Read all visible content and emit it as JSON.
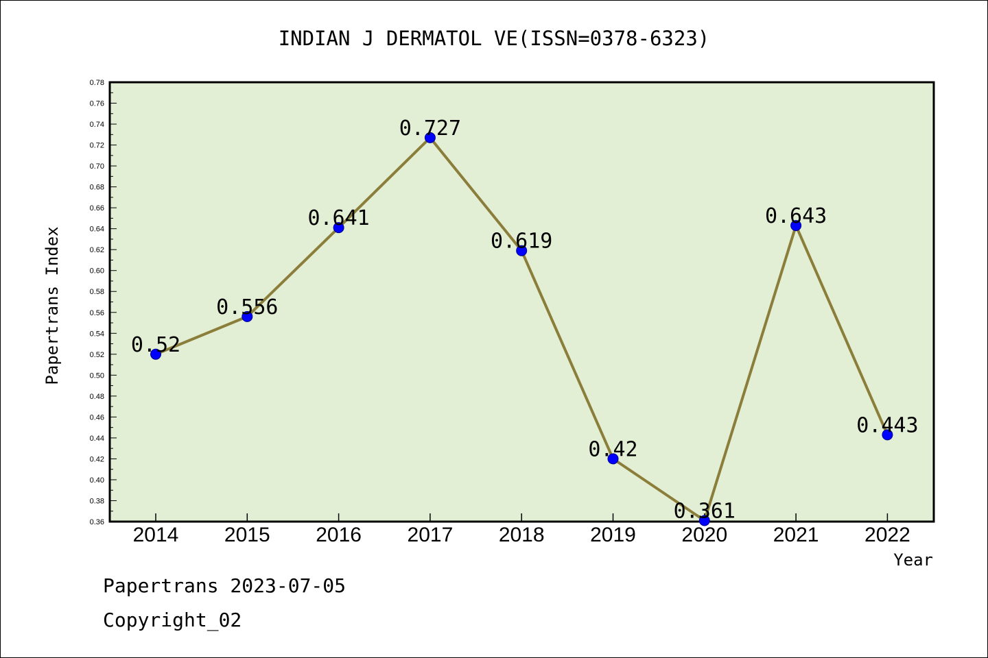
{
  "chart_data": {
    "type": "line",
    "title": "INDIAN J DERMATOL VE(ISSN=0378-6323)",
    "xlabel": "Year",
    "ylabel": "Papertrans Index",
    "categories": [
      "2014",
      "2015",
      "2016",
      "2017",
      "2018",
      "2019",
      "2020",
      "2021",
      "2022"
    ],
    "values": [
      0.52,
      0.556,
      0.641,
      0.727,
      0.619,
      0.42,
      0.361,
      0.643,
      0.443
    ],
    "data_labels": [
      "0.52",
      "0.556",
      "0.641",
      "0.727",
      "0.619",
      "0.42",
      "0.361",
      "0.643",
      "0.443"
    ],
    "ylim": [
      0.36,
      0.78
    ],
    "yticks": [
      "0.36",
      "0.38",
      "0.40",
      "0.42",
      "0.44",
      "0.46",
      "0.48",
      "0.50",
      "0.52",
      "0.54",
      "0.56",
      "0.58",
      "0.60",
      "0.62",
      "0.64",
      "0.66",
      "0.68",
      "0.70",
      "0.72",
      "0.74",
      "0.76",
      "0.78"
    ],
    "grid": false,
    "colors": {
      "plot_background": "#e2efd5",
      "line": "#8b7d3a",
      "marker": "#0000ff"
    }
  },
  "footer": {
    "line1": "Papertrans 2023-07-05",
    "line2": "Copyright_02"
  }
}
